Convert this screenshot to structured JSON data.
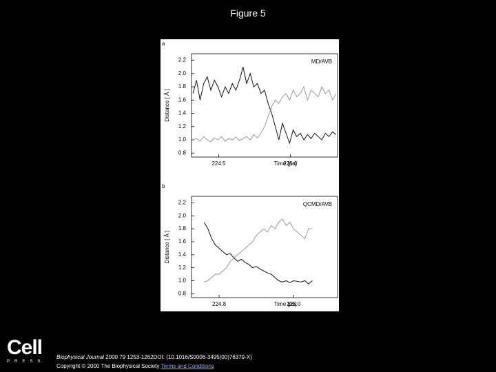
{
  "page": {
    "title": "Figure 5",
    "logo": "Cell",
    "logo_sub": "PRESS",
    "journal": "Biophysical Journal",
    "reference": "2000 79 1253-1262DOI: (10.1016/S0006-3495(00)76379-X)",
    "copyright": "Copyright © 2000 The Biophysical Society",
    "link": "Terms and Conditions"
  },
  "chart_data": [
    {
      "type": "line",
      "panel": "a",
      "annotation": "MD/AVB",
      "y_label": "Distance [ Å ]",
      "x_label": "Time [ps]",
      "xlim": [
        224.31,
        225.33
      ],
      "xticks": [
        224.5,
        {
          "value": 225,
          "label": "225.0"
        }
      ],
      "ylim": [
        0.74,
        2.3
      ],
      "yticks": [
        0.8,
        {
          "value": 1,
          "label": "1.0"
        },
        1.2,
        1.4,
        1.6,
        1.8,
        {
          "value": 2,
          "label": "2.0"
        },
        2.2
      ],
      "x": [
        224.32,
        224.345,
        224.37,
        224.395,
        224.42,
        224.445,
        224.47,
        224.495,
        224.52,
        224.545,
        224.57,
        224.595,
        224.62,
        224.645,
        224.67,
        224.695,
        224.72,
        224.745,
        224.77,
        224.795,
        224.82,
        224.845,
        224.87,
        224.895,
        224.92,
        224.945,
        224.97,
        224.995,
        225.02,
        225.045,
        225.07,
        225.095,
        225.12,
        225.145,
        225.17,
        225.195,
        225.22,
        225.245,
        225.27,
        225.295,
        225.32
      ],
      "series": [
        {
          "color": "#111111",
          "values": [
            1.7,
            1.9,
            1.6,
            1.85,
            1.95,
            1.75,
            1.9,
            1.8,
            1.65,
            1.8,
            1.7,
            1.85,
            1.75,
            1.9,
            2.1,
            1.85,
            2.0,
            1.8,
            1.85,
            1.7,
            1.75,
            1.55,
            1.4,
            1.2,
            1.0,
            1.25,
            1.1,
            0.95,
            1.15,
            1.05,
            1.1,
            1.0,
            1.08,
            1.02,
            1.1,
            1.05,
            1.0,
            1.1,
            1.05,
            1.12,
            1.08
          ]
        },
        {
          "color": "#999999",
          "values": [
            1.0,
            1.02,
            0.98,
            1.05,
            1.0,
            0.97,
            1.03,
            1.0,
            1.05,
            0.98,
            1.02,
            1.0,
            1.04,
            0.99,
            1.02,
            1.05,
            1.0,
            1.08,
            1.03,
            1.1,
            1.2,
            1.35,
            1.5,
            1.6,
            1.55,
            1.65,
            1.7,
            1.6,
            1.75,
            1.65,
            1.7,
            1.8,
            1.6,
            1.75,
            1.7,
            1.65,
            1.8,
            1.7,
            1.75,
            1.6,
            1.7
          ]
        }
      ]
    },
    {
      "type": "line",
      "panel": "b",
      "annotation": "QCMD/AVB",
      "y_label": "Distance [ Å ]",
      "x_label": "Time [ps]",
      "xlim": [
        224.726,
        225.118
      ],
      "xticks": [
        224.8,
        {
          "value": 225,
          "label": "225.0"
        }
      ],
      "ylim": [
        0.74,
        2.3
      ],
      "yticks": [
        0.8,
        {
          "value": 1,
          "label": "1.0"
        },
        1.2,
        1.4,
        1.6,
        1.8,
        {
          "value": 2,
          "label": "2.0"
        },
        2.2
      ],
      "x": [
        224.76,
        224.77,
        224.78,
        224.79,
        224.8,
        224.81,
        224.82,
        224.83,
        224.84,
        224.85,
        224.86,
        224.87,
        224.88,
        224.89,
        224.9,
        224.91,
        224.92,
        224.93,
        224.94,
        224.95,
        224.96,
        224.97,
        224.98,
        224.99,
        225.0,
        225.01,
        225.02,
        225.03,
        225.04,
        225.05
      ],
      "series": [
        {
          "color": "#111111",
          "values": [
            1.9,
            1.8,
            1.65,
            1.55,
            1.5,
            1.45,
            1.4,
            1.42,
            1.35,
            1.3,
            1.33,
            1.28,
            1.25,
            1.2,
            1.22,
            1.18,
            1.15,
            1.12,
            1.1,
            1.05,
            1.0,
            0.98,
            1.0,
            0.97,
            1.0,
            0.99,
            0.98,
            1.0,
            0.95,
            1.0
          ]
        },
        {
          "color": "#999999",
          "values": [
            0.98,
            1.0,
            1.05,
            1.1,
            1.1,
            1.15,
            1.2,
            1.3,
            1.35,
            1.4,
            1.45,
            1.5,
            1.55,
            1.6,
            1.7,
            1.75,
            1.8,
            1.75,
            1.85,
            1.8,
            1.9,
            1.95,
            1.85,
            1.9,
            1.8,
            1.75,
            1.7,
            1.65,
            1.8,
            1.8
          ]
        }
      ]
    }
  ]
}
